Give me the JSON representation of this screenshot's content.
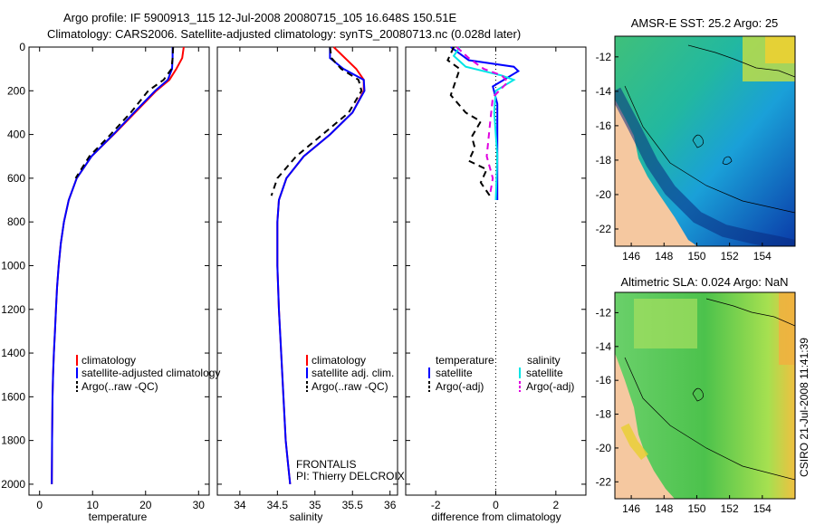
{
  "figure": {
    "title_line1": "Argo profile: IF 5900913_115 12-Jul-2008 20080715_105 16.648S 150.51E",
    "title_line2": "Climatology: CARS2006. Satellite-adjusted climatology: synTS_20080713.nc (0.028d later)",
    "side_label": "CSIRO 21-Jul-2008 11:41:39",
    "program": "FRONTALIS",
    "pi": "PI: Thierry DELCROIX"
  },
  "colors": {
    "climatology": "#ff0000",
    "satellite": "#0000ff",
    "argo": "#000000",
    "sat_salinity": "#00e5e5",
    "argo_salinity": "#e000e0",
    "land": "#f5c8a0"
  },
  "chart_data": [
    {
      "type": "line",
      "id": "temperature",
      "xlabel": "temperature",
      "xlim": [
        -2,
        32
      ],
      "ylim": [
        0,
        2050
      ],
      "xticks": [
        0,
        10,
        20,
        30
      ],
      "yticks": [
        0,
        200,
        400,
        600,
        800,
        1000,
        1200,
        1400,
        1600,
        1800,
        2000
      ],
      "y_reversed": true,
      "legend": [
        "climatology",
        "satellite-adjusted climatology",
        "Argo(..raw -QC)"
      ],
      "series": [
        {
          "name": "climatology",
          "color": "#ff0000",
          "dash": "",
          "x": [
            27.2,
            26.9,
            25.8,
            24.5,
            22.0,
            18.0,
            14.0,
            9.8,
            7.0,
            5.5,
            4.6,
            4.0,
            3.6,
            3.3,
            3.1,
            2.9,
            2.7,
            2.55,
            2.45,
            2.35,
            2.3
          ],
          "y": [
            0,
            50,
            100,
            150,
            200,
            300,
            400,
            500,
            600,
            700,
            800,
            900,
            1000,
            1100,
            1200,
            1300,
            1400,
            1500,
            1600,
            1800,
            2000
          ]
        },
        {
          "name": "satellite-adjusted climatology",
          "color": "#0000ff",
          "dash": "",
          "x": [
            25.1,
            25.1,
            25.0,
            24.2,
            21.8,
            17.8,
            13.9,
            9.8,
            7.0,
            5.5,
            4.6,
            4.0,
            3.6,
            3.3,
            3.1,
            2.9,
            2.7,
            2.55,
            2.45,
            2.35,
            2.3
          ],
          "y": [
            0,
            50,
            100,
            150,
            200,
            300,
            400,
            500,
            600,
            700,
            800,
            900,
            1000,
            1100,
            1200,
            1300,
            1400,
            1500,
            1600,
            1800,
            2000
          ]
        },
        {
          "name": "Argo(..raw -QC)",
          "color": "#000000",
          "dash": "7,5",
          "x": [
            25.2,
            25.1,
            24.9,
            23.4,
            20.5,
            17.2,
            13.4,
            9.4,
            6.8
          ],
          "y": [
            0,
            50,
            100,
            150,
            200,
            300,
            400,
            500,
            600
          ]
        }
      ]
    },
    {
      "type": "line",
      "id": "salinity",
      "xlabel": "salinity",
      "xlim": [
        33.7,
        36.1
      ],
      "ylim": [
        0,
        2050
      ],
      "xticks": [
        34,
        34.5,
        35,
        35.5,
        36
      ],
      "y_reversed": true,
      "legend": [
        "climatology",
        "satellite adj. clim.",
        "Argo(..raw -QC)"
      ],
      "series": [
        {
          "name": "climatology",
          "color": "#ff0000",
          "dash": "",
          "x": [
            35.25,
            35.4,
            35.55,
            35.65,
            35.65,
            35.5,
            35.2,
            34.85,
            34.62,
            34.52,
            34.5,
            34.5,
            34.52,
            34.55,
            34.58,
            34.61,
            34.64,
            34.67
          ],
          "y": [
            0,
            50,
            100,
            150,
            200,
            300,
            400,
            500,
            600,
            700,
            800,
            1000,
            1200,
            1400,
            1600,
            1800,
            1900,
            2000
          ]
        },
        {
          "name": "satellite adj. clim.",
          "color": "#0000ff",
          "dash": "",
          "x": [
            35.2,
            35.2,
            35.38,
            35.65,
            35.66,
            35.5,
            35.2,
            34.85,
            34.62,
            34.52,
            34.5,
            34.5,
            34.52,
            34.55,
            34.58,
            34.61,
            34.64,
            34.67
          ],
          "y": [
            0,
            50,
            100,
            150,
            200,
            300,
            400,
            500,
            600,
            700,
            800,
            1000,
            1200,
            1400,
            1600,
            1800,
            1900,
            2000
          ]
        },
        {
          "name": "Argo(..raw -QC)",
          "color": "#000000",
          "dash": "7,5",
          "x": [
            35.2,
            35.22,
            35.35,
            35.58,
            35.62,
            35.45,
            35.1,
            34.75,
            34.5,
            34.42
          ],
          "y": [
            0,
            50,
            100,
            150,
            200,
            300,
            400,
            500,
            600,
            680
          ]
        }
      ]
    },
    {
      "type": "line",
      "id": "difference",
      "xlabel": "difference from climatology",
      "xlim": [
        -3,
        3
      ],
      "ylim": [
        0,
        2050
      ],
      "xticks": [
        -2,
        0,
        2
      ],
      "y_reversed": true,
      "legend_title_temperature": "temperature",
      "legend_title_salinity": "salinity",
      "legend": [
        "satellite",
        "Argo(-adj)",
        "satellite",
        "Argo(-adj)"
      ],
      "series": [
        {
          "name": "temperature satellite",
          "color": "#0000ff",
          "dash": "",
          "x": [
            -1.5,
            -0.9,
            0.6,
            0.75,
            -0.1,
            0.05,
            0.05,
            0.05,
            0.05
          ],
          "y": [
            0,
            60,
            90,
            110,
            180,
            260,
            400,
            600,
            700
          ]
        },
        {
          "name": "temperature Argo(-adj)",
          "color": "#000000",
          "dash": "7,5",
          "x": [
            -1.4,
            -1.6,
            -1.2,
            -1.5,
            -1.0,
            -0.5,
            -0.8,
            -0.7,
            -0.9,
            -0.3,
            -0.5,
            -0.2
          ],
          "y": [
            0,
            60,
            100,
            220,
            300,
            340,
            410,
            460,
            520,
            560,
            620,
            680
          ]
        },
        {
          "name": "salinity satellite",
          "color": "#00e5e5",
          "dash": "",
          "x": [
            -1.2,
            -1.4,
            -1.0,
            0.2,
            0.6,
            0.0,
            -0.05,
            0.05,
            0.0
          ],
          "y": [
            0,
            40,
            90,
            130,
            150,
            200,
            300,
            500,
            700
          ]
        },
        {
          "name": "salinity Argo(-adj)",
          "color": "#e000e0",
          "dash": "7,5",
          "x": [
            -1.3,
            -0.9,
            -0.4,
            0.2,
            0.4,
            -0.1,
            -0.2,
            -0.3,
            -0.1,
            -0.2
          ],
          "y": [
            0,
            50,
            100,
            130,
            160,
            230,
            360,
            500,
            600,
            680
          ]
        }
      ]
    },
    {
      "type": "heatmap",
      "id": "sst-map",
      "title": "AMSR-E SST: 25.2 Argo: 25",
      "xticks": [
        146,
        148,
        150,
        152,
        154
      ],
      "yticks": [
        -12,
        -14,
        -16,
        -18,
        -20,
        -22
      ],
      "xlim": [
        145,
        156
      ],
      "ylim": [
        -23,
        -10.8
      ]
    },
    {
      "type": "heatmap",
      "id": "sla-map",
      "title": "Altimetric SLA: 0.024 Argo: NaN",
      "xticks": [
        146,
        148,
        150,
        152,
        154
      ],
      "yticks": [
        -12,
        -14,
        -16,
        -18,
        -20,
        -22
      ],
      "xlim": [
        145,
        156
      ],
      "ylim": [
        -23,
        -10.8
      ]
    }
  ]
}
